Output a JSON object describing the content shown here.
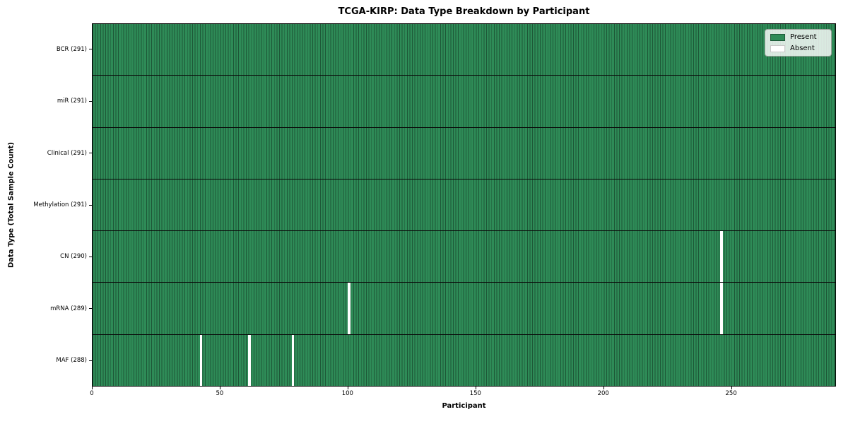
{
  "title": "TCGA-KIRP: Data Type Breakdown by Participant",
  "xlabel": "Participant",
  "ylabel": "Data Type (Total Sample Count)",
  "legend": {
    "present_label": "Present",
    "absent_label": "Absent",
    "position": "upper right"
  },
  "colors": {
    "present_fill": "#2e8b57",
    "bar_edge": "#1d5737",
    "absent_fill": "#ffffff",
    "row_divider": "#0a0a0a",
    "plot_border": "#000000"
  },
  "chart_data": {
    "type": "heatmap",
    "title": "TCGA-KIRP: Data Type Breakdown by Participant",
    "xlabel": "Participant",
    "ylabel": "Data Type (Total Sample Count)",
    "n_participants": 291,
    "x_ticks": [
      0,
      50,
      100,
      150,
      200,
      250
    ],
    "xlim": [
      0,
      291
    ],
    "grid": false,
    "legend_entries": [
      "Present",
      "Absent"
    ],
    "legend_position": "upper right",
    "rows": [
      {
        "name": "BCR",
        "label": "BCR (291)",
        "present_count": 291,
        "absent_participants": []
      },
      {
        "name": "miR",
        "label": "miR (291)",
        "present_count": 291,
        "absent_participants": []
      },
      {
        "name": "Clinical",
        "label": "Clinical (291)",
        "present_count": 291,
        "absent_participants": []
      },
      {
        "name": "Methylation",
        "label": "Methylation (291)",
        "present_count": 291,
        "absent_participants": []
      },
      {
        "name": "CN",
        "label": "CN (290)",
        "present_count": 290,
        "absent_participants": [
          246
        ]
      },
      {
        "name": "mRNA",
        "label": "mRNA (289)",
        "present_count": 289,
        "absent_participants": [
          100,
          246
        ]
      },
      {
        "name": "MAF",
        "label": "MAF (288)",
        "present_count": 288,
        "absent_participants": [
          42,
          61,
          78
        ]
      }
    ]
  }
}
